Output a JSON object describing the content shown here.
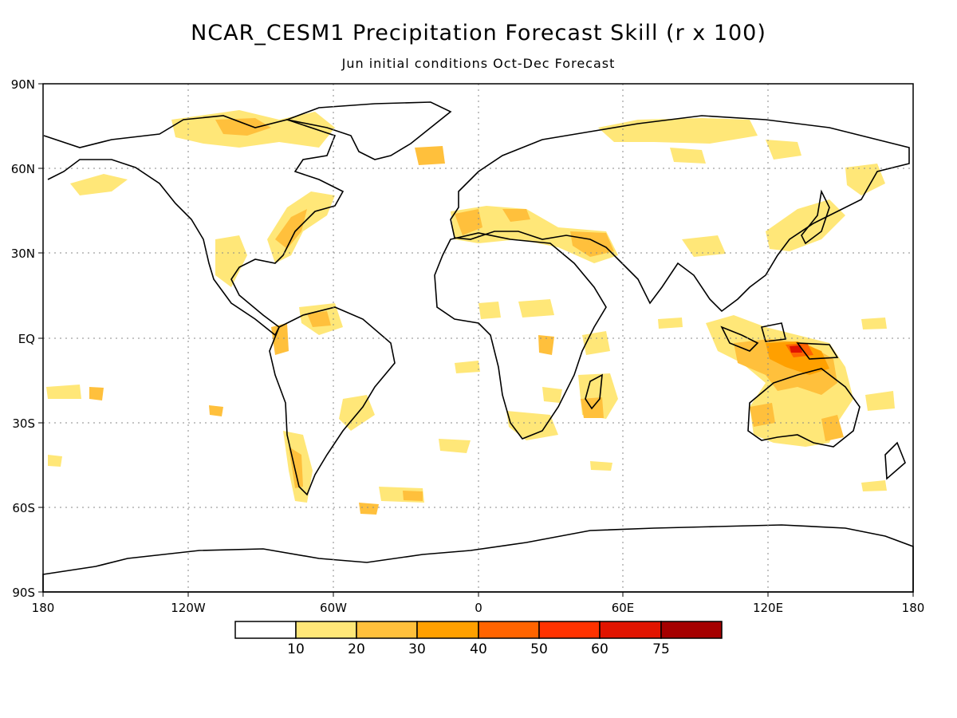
{
  "title": "NCAR_CESM1 Precipitation Forecast Skill (r x 100)",
  "subtitle": "Jun initial conditions  Oct-Dec Forecast",
  "lat_ticks": [
    "90N",
    "60N",
    "30N",
    "EQ",
    "30S",
    "60S",
    "90S"
  ],
  "lon_ticks": [
    "180",
    "120W",
    "60W",
    "0",
    "60E",
    "120E",
    "180"
  ],
  "colorbar": {
    "labels": [
      "10",
      "20",
      "30",
      "40",
      "50",
      "60",
      "75"
    ],
    "colors": [
      "#ffffff",
      "#ffe778",
      "#ffc03c",
      "#ffa000",
      "#ff6400",
      "#ff3200",
      "#e11400",
      "#a50000"
    ]
  }
}
